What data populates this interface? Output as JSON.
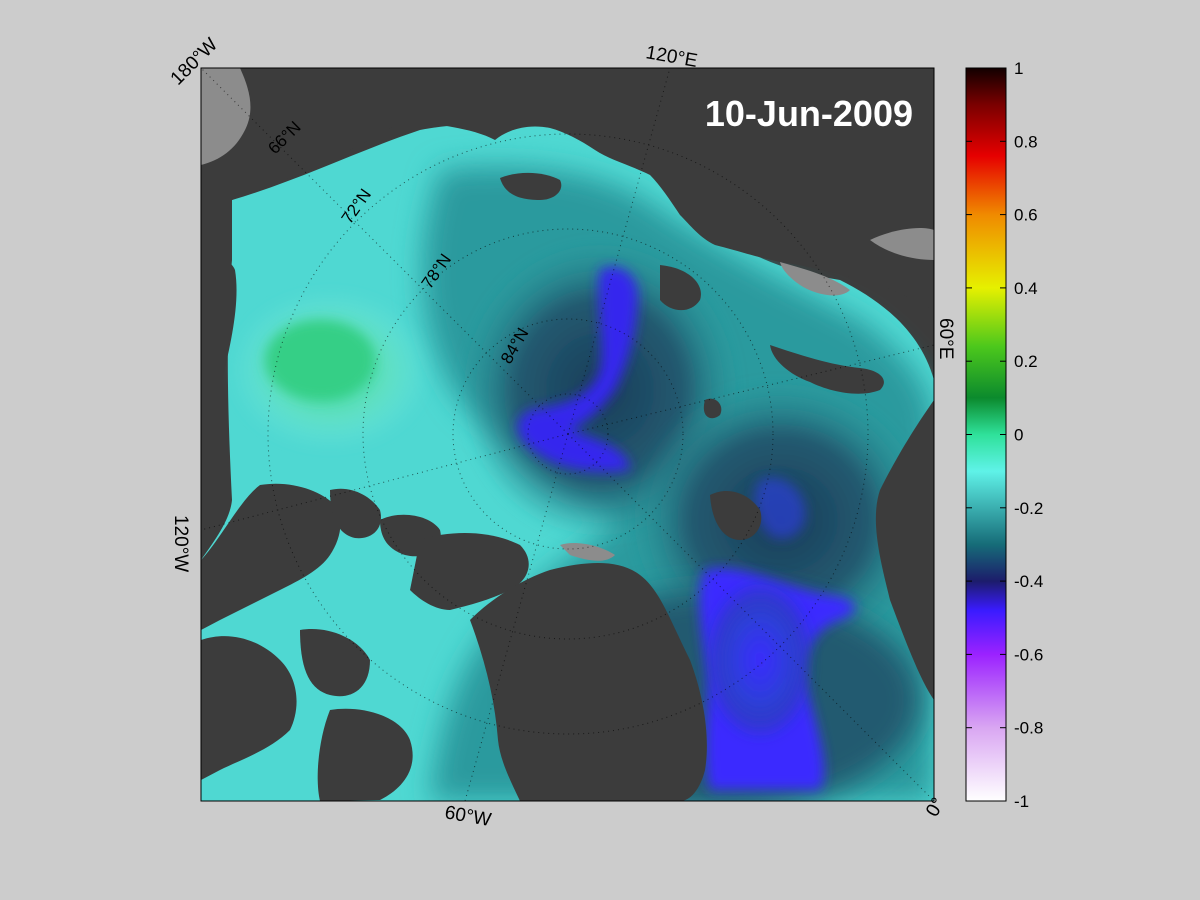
{
  "date_label": "10-Jun-2009",
  "longitude_labels": {
    "lon_180w": "180°W",
    "lon_120e": "120°E",
    "lon_60e": "60°E",
    "lon_120w": "120°W",
    "lon_60w": "60°W",
    "lon_0": "0°"
  },
  "latitude_labels": [
    "66°N",
    "72°N",
    "78°N",
    "84°N"
  ],
  "colorbar": {
    "min": -1,
    "max": 1,
    "ticks": [
      "1",
      "0.8",
      "0.6",
      "0.4",
      "0.2",
      "0",
      "-0.2",
      "-0.4",
      "-0.6",
      "-0.8",
      "-1"
    ]
  },
  "colors": {
    "background": "#cccccc",
    "land": "#3c3c3c",
    "ocean_light": "#5fe0d8",
    "ocean_mid": "#2a8f95",
    "ocean_dark": "#1d4f66",
    "anomaly_low": "#3a2bff"
  }
}
